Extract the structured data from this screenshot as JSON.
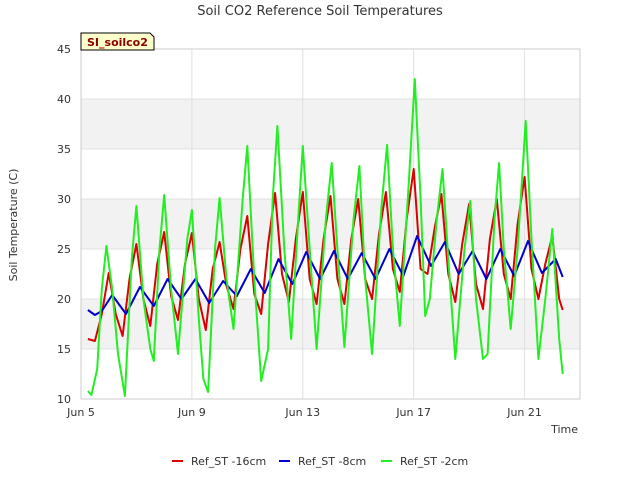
{
  "chart_data": {
    "type": "line",
    "title": "Soil CO2 Reference Soil Temperatures",
    "xlabel": "Time",
    "ylabel": "Soil Temperature (C)",
    "badge": "SI_soilco2",
    "ylim": [
      10,
      45
    ],
    "y_ticks": [
      10,
      15,
      20,
      25,
      30,
      35,
      40,
      45
    ],
    "xlim": [
      "2023-06-05",
      "2023-06-23"
    ],
    "x_ticks": [
      {
        "date": "2023-06-05",
        "label": "Jun 5"
      },
      {
        "date": "2023-06-09",
        "label": "Jun 9"
      },
      {
        "date": "2023-06-13",
        "label": "Jun 13"
      },
      {
        "date": "2023-06-17",
        "label": "Jun 17"
      },
      {
        "date": "2023-06-21",
        "label": "Jun 21"
      }
    ],
    "grid": true,
    "legend_position": "bottom",
    "colors": {
      "Ref_ST -16cm": "#dd0000",
      "Ref_ST -8cm": "#0000cc",
      "Ref_ST -2cm": "#22ee22",
      "band": "#f2f2f2",
      "grid": "#e0e0e0"
    },
    "series": [
      {
        "name": "Ref_ST -16cm",
        "points": [
          [
            "2023-06-05 06:00",
            16.0
          ],
          [
            "2023-06-05 12:00",
            15.8
          ],
          [
            "2023-06-05 18:00",
            18.5
          ],
          [
            "2023-06-06 00:00",
            22.6
          ],
          [
            "2023-06-06 06:00",
            18.5
          ],
          [
            "2023-06-06 12:00",
            16.3
          ],
          [
            "2023-06-06 18:00",
            22.0
          ],
          [
            "2023-06-07 00:00",
            25.5
          ],
          [
            "2023-06-07 06:00",
            20.0
          ],
          [
            "2023-06-07 12:00",
            17.3
          ],
          [
            "2023-06-07 18:00",
            23.5
          ],
          [
            "2023-06-08 00:00",
            26.7
          ],
          [
            "2023-06-08 06:00",
            20.3
          ],
          [
            "2023-06-08 12:00",
            17.9
          ],
          [
            "2023-06-08 18:00",
            23.5
          ],
          [
            "2023-06-09 00:00",
            26.6
          ],
          [
            "2023-06-09 06:00",
            20.0
          ],
          [
            "2023-06-09 12:00",
            16.9
          ],
          [
            "2023-06-09 18:00",
            23.0
          ],
          [
            "2023-06-10 00:00",
            25.7
          ],
          [
            "2023-06-10 06:00",
            21.3
          ],
          [
            "2023-06-10 12:00",
            19.0
          ],
          [
            "2023-06-10 18:00",
            25.0
          ],
          [
            "2023-06-11 00:00",
            28.3
          ],
          [
            "2023-06-11 06:00",
            20.5
          ],
          [
            "2023-06-11 12:00",
            18.5
          ],
          [
            "2023-06-11 18:00",
            25.5
          ],
          [
            "2023-06-12 00:00",
            30.6
          ],
          [
            "2023-06-12 06:00",
            22.5
          ],
          [
            "2023-06-12 12:00",
            19.7
          ],
          [
            "2023-06-12 18:00",
            26.0
          ],
          [
            "2023-06-13 00:00",
            30.7
          ],
          [
            "2023-06-13 06:00",
            22.0
          ],
          [
            "2023-06-13 12:00",
            19.5
          ],
          [
            "2023-06-13 18:00",
            26.0
          ],
          [
            "2023-06-14 00:00",
            30.3
          ],
          [
            "2023-06-14 06:00",
            22.0
          ],
          [
            "2023-06-14 12:00",
            19.5
          ],
          [
            "2023-06-14 18:00",
            26.0
          ],
          [
            "2023-06-15 00:00",
            30.0
          ],
          [
            "2023-06-15 06:00",
            22.0
          ],
          [
            "2023-06-15 12:00",
            20.0
          ],
          [
            "2023-06-15 18:00",
            26.5
          ],
          [
            "2023-06-16 00:00",
            30.7
          ],
          [
            "2023-06-16 06:00",
            23.0
          ],
          [
            "2023-06-16 12:00",
            20.7
          ],
          [
            "2023-06-16 18:00",
            28.0
          ],
          [
            "2023-06-17 00:00",
            33.0
          ],
          [
            "2023-06-17 06:00",
            23.0
          ],
          [
            "2023-06-17 12:00",
            22.5
          ],
          [
            "2023-06-17 18:00",
            27.0
          ],
          [
            "2023-06-18 00:00",
            30.5
          ],
          [
            "2023-06-18 06:00",
            22.5
          ],
          [
            "2023-06-18 12:00",
            19.7
          ],
          [
            "2023-06-18 18:00",
            25.5
          ],
          [
            "2023-06-19 00:00",
            29.5
          ],
          [
            "2023-06-19 06:00",
            21.5
          ],
          [
            "2023-06-19 12:00",
            19.0
          ],
          [
            "2023-06-19 18:00",
            26.0
          ],
          [
            "2023-06-20 00:00",
            30.0
          ],
          [
            "2023-06-20 06:00",
            22.5
          ],
          [
            "2023-06-20 12:00",
            20.0
          ],
          [
            "2023-06-20 18:00",
            27.5
          ],
          [
            "2023-06-21 00:00",
            32.2
          ],
          [
            "2023-06-21 06:00",
            23.0
          ],
          [
            "2023-06-21 12:00",
            20.0
          ],
          [
            "2023-06-21 18:00",
            23.5
          ],
          [
            "2023-06-22 00:00",
            26.3
          ],
          [
            "2023-06-22 06:00",
            20.0
          ],
          [
            "2023-06-22 09:00",
            18.9
          ]
        ]
      },
      {
        "name": "Ref_ST -8cm",
        "points": [
          [
            "2023-06-05 06:00",
            18.9
          ],
          [
            "2023-06-05 12:00",
            18.4
          ],
          [
            "2023-06-05 18:00",
            18.8
          ],
          [
            "2023-06-06 03:00",
            20.4
          ],
          [
            "2023-06-06 15:00",
            18.5
          ],
          [
            "2023-06-07 03:00",
            21.2
          ],
          [
            "2023-06-07 15:00",
            19.3
          ],
          [
            "2023-06-08 03:00",
            22.0
          ],
          [
            "2023-06-08 15:00",
            20.0
          ],
          [
            "2023-06-09 03:00",
            22.0
          ],
          [
            "2023-06-09 15:00",
            19.6
          ],
          [
            "2023-06-10 03:00",
            21.8
          ],
          [
            "2023-06-10 15:00",
            20.3
          ],
          [
            "2023-06-11 03:00",
            23.0
          ],
          [
            "2023-06-11 15:00",
            20.6
          ],
          [
            "2023-06-12 03:00",
            24.0
          ],
          [
            "2023-06-12 15:00",
            21.5
          ],
          [
            "2023-06-13 03:00",
            24.7
          ],
          [
            "2023-06-13 15:00",
            22.0
          ],
          [
            "2023-06-14 03:00",
            24.8
          ],
          [
            "2023-06-14 15:00",
            22.0
          ],
          [
            "2023-06-15 03:00",
            24.6
          ],
          [
            "2023-06-15 15:00",
            22.0
          ],
          [
            "2023-06-16 03:00",
            25.0
          ],
          [
            "2023-06-16 15:00",
            22.3
          ],
          [
            "2023-06-17 03:00",
            26.3
          ],
          [
            "2023-06-17 15:00",
            23.3
          ],
          [
            "2023-06-18 03:00",
            25.7
          ],
          [
            "2023-06-18 15:00",
            22.5
          ],
          [
            "2023-06-19 03:00",
            24.8
          ],
          [
            "2023-06-19 15:00",
            22.0
          ],
          [
            "2023-06-20 03:00",
            25.0
          ],
          [
            "2023-06-20 15:00",
            22.3
          ],
          [
            "2023-06-21 03:00",
            25.8
          ],
          [
            "2023-06-21 15:00",
            22.6
          ],
          [
            "2023-06-22 03:00",
            24.0
          ],
          [
            "2023-06-22 09:00",
            22.2
          ]
        ]
      },
      {
        "name": "Ref_ST -2cm",
        "points": [
          [
            "2023-06-05 06:00",
            10.8
          ],
          [
            "2023-06-05 09:00",
            10.4
          ],
          [
            "2023-06-05 14:00",
            13.0
          ],
          [
            "2023-06-05 18:00",
            21.0
          ],
          [
            "2023-06-05 22:00",
            25.3
          ],
          [
            "2023-06-06 03:00",
            21.0
          ],
          [
            "2023-06-06 08:00",
            14.5
          ],
          [
            "2023-06-06 14:00",
            10.3
          ],
          [
            "2023-06-06 20:00",
            24.0
          ],
          [
            "2023-06-07 00:00",
            29.3
          ],
          [
            "2023-06-07 06:00",
            20.0
          ],
          [
            "2023-06-07 12:00",
            15.0
          ],
          [
            "2023-06-07 15:00",
            13.8
          ],
          [
            "2023-06-07 20:00",
            25.0
          ],
          [
            "2023-06-08 00:00",
            30.4
          ],
          [
            "2023-06-08 06:00",
            21.0
          ],
          [
            "2023-06-08 12:00",
            14.5
          ],
          [
            "2023-06-08 20:00",
            26.0
          ],
          [
            "2023-06-09 00:00",
            28.9
          ],
          [
            "2023-06-09 06:00",
            18.0
          ],
          [
            "2023-06-09 10:00",
            12.0
          ],
          [
            "2023-06-09 14:00",
            10.7
          ],
          [
            "2023-06-09 20:00",
            25.0
          ],
          [
            "2023-06-10 00:00",
            30.1
          ],
          [
            "2023-06-10 06:00",
            22.0
          ],
          [
            "2023-06-10 12:00",
            17.0
          ],
          [
            "2023-06-10 20:00",
            30.0
          ],
          [
            "2023-06-11 00:00",
            35.3
          ],
          [
            "2023-06-11 06:00",
            22.0
          ],
          [
            "2023-06-11 12:00",
            11.8
          ],
          [
            "2023-06-11 18:00",
            15.0
          ],
          [
            "2023-06-11 22:00",
            30.0
          ],
          [
            "2023-06-12 02:00",
            37.3
          ],
          [
            "2023-06-12 08:00",
            25.0
          ],
          [
            "2023-06-12 14:00",
            16.0
          ],
          [
            "2023-06-12 20:00",
            28.0
          ],
          [
            "2023-06-13 00:00",
            35.3
          ],
          [
            "2023-06-13 06:00",
            25.0
          ],
          [
            "2023-06-13 12:00",
            15.0
          ],
          [
            "2023-06-13 20:00",
            28.0
          ],
          [
            "2023-06-14 01:00",
            33.6
          ],
          [
            "2023-06-14 06:00",
            25.0
          ],
          [
            "2023-06-14 12:00",
            15.2
          ],
          [
            "2023-06-14 20:00",
            28.0
          ],
          [
            "2023-06-15 01:00",
            33.3
          ],
          [
            "2023-06-15 06:00",
            22.0
          ],
          [
            "2023-06-15 12:00",
            14.5
          ],
          [
            "2023-06-15 20:00",
            29.0
          ],
          [
            "2023-06-16 01:00",
            35.4
          ],
          [
            "2023-06-16 06:00",
            25.0
          ],
          [
            "2023-06-16 12:00",
            17.3
          ],
          [
            "2023-06-16 20:00",
            32.0
          ],
          [
            "2023-06-17 01:00",
            42.0
          ],
          [
            "2023-06-17 06:00",
            30.0
          ],
          [
            "2023-06-17 10:00",
            18.3
          ],
          [
            "2023-06-17 14:00",
            20.0
          ],
          [
            "2023-06-17 20:00",
            28.0
          ],
          [
            "2023-06-18 01:00",
            33.0
          ],
          [
            "2023-06-18 06:00",
            24.0
          ],
          [
            "2023-06-18 12:00",
            14.0
          ],
          [
            "2023-06-18 20:00",
            25.0
          ],
          [
            "2023-06-19 01:00",
            29.8
          ],
          [
            "2023-06-19 06:00",
            20.0
          ],
          [
            "2023-06-19 12:00",
            14.0
          ],
          [
            "2023-06-19 16:00",
            14.5
          ],
          [
            "2023-06-19 22:00",
            28.0
          ],
          [
            "2023-06-20 02:00",
            33.6
          ],
          [
            "2023-06-20 06:00",
            25.0
          ],
          [
            "2023-06-20 12:00",
            17.0
          ],
          [
            "2023-06-20 18:00",
            25.0
          ],
          [
            "2023-06-21 01:00",
            37.8
          ],
          [
            "2023-06-21 06:00",
            26.0
          ],
          [
            "2023-06-21 12:00",
            14.0
          ],
          [
            "2023-06-21 18:00",
            20.0
          ],
          [
            "2023-06-22 00:00",
            27.0
          ],
          [
            "2023-06-22 06:00",
            16.0
          ],
          [
            "2023-06-22 09:00",
            12.5
          ]
        ]
      }
    ]
  }
}
